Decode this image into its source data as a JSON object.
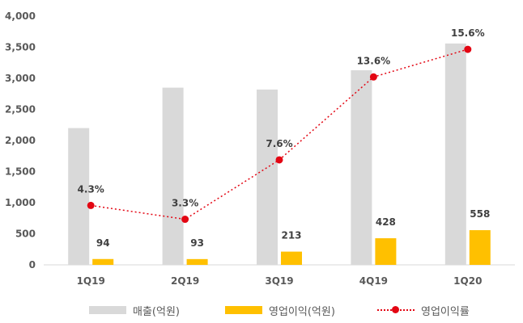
{
  "chart_data": {
    "type": "bar",
    "categories": [
      "1Q19",
      "2Q19",
      "3Q19",
      "4Q19",
      "1Q20"
    ],
    "series": [
      {
        "name": "매출(억원)",
        "kind": "bar",
        "color": "#d9d9d9",
        "values": [
          2200,
          2850,
          2820,
          3130,
          3560
        ]
      },
      {
        "name": "영업이익(억원)",
        "kind": "bar",
        "color": "#ffc000",
        "values": [
          94,
          93,
          213,
          428,
          558
        ],
        "labels": [
          "94",
          "93",
          "213",
          "428",
          "558"
        ]
      },
      {
        "name": "영업이익률",
        "kind": "line",
        "color": "#e30613",
        "style": "dotted",
        "secondary_axis": true,
        "values": [
          4.3,
          3.3,
          7.6,
          13.6,
          15.6
        ],
        "labels": [
          "4.3%",
          "3.3%",
          "7.6%",
          "13.6%",
          "15.6%"
        ]
      }
    ],
    "y_ticks": [
      "0",
      "500",
      "1,000",
      "1,500",
      "2,000",
      "2,500",
      "3,000",
      "3,500",
      "4,000"
    ],
    "ylim": [
      0,
      4000
    ],
    "y2lim": [
      0,
      18.0
    ],
    "grid": false,
    "legend_position": "bottom"
  }
}
